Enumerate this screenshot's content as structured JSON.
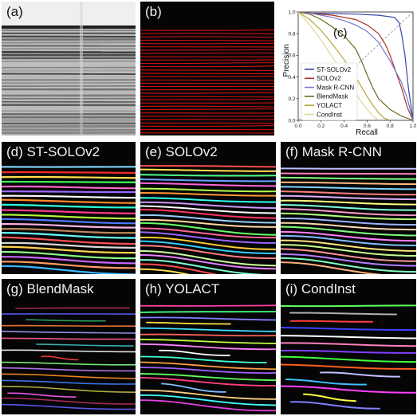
{
  "panels": [
    {
      "id": "a",
      "label": "(a)"
    },
    {
      "id": "b",
      "label": "(b)"
    },
    {
      "id": "c",
      "label": "(c)"
    },
    {
      "id": "d",
      "label": "(d) ST-SOLOv2"
    },
    {
      "id": "e",
      "label": "(e) SOLOv2"
    },
    {
      "id": "f",
      "label": "(f) Mask R-CNN"
    },
    {
      "id": "g",
      "label": "(g) BlendMask"
    },
    {
      "id": "h",
      "label": "(h) YOLACT"
    },
    {
      "id": "i",
      "label": "(i) CondInst"
    }
  ],
  "chart_data": {
    "type": "line",
    "title": "",
    "xlabel": "Recall",
    "ylabel": "Precision",
    "xlim": [
      0.0,
      1.0
    ],
    "ylim": [
      0.0,
      1.0
    ],
    "xticks": [
      "0.0",
      "0.2",
      "0.4",
      "0.6",
      "0.8",
      "1.0"
    ],
    "yticks": [
      "0.0",
      "0.2",
      "0.4",
      "0.6",
      "0.8",
      "1.0"
    ],
    "legend_position": "lower-left",
    "grid": false,
    "diagonal_reference": true,
    "series": [
      {
        "name": "ST-SOLOv2",
        "color": "#3344aa",
        "x": [
          0.0,
          0.1,
          0.3,
          0.5,
          0.7,
          0.84,
          0.88,
          0.9,
          0.93,
          0.96,
          1.0
        ],
        "y": [
          1.0,
          0.99,
          0.985,
          0.98,
          0.97,
          0.95,
          0.9,
          0.8,
          0.6,
          0.3,
          0.0
        ]
      },
      {
        "name": "SOLOv2",
        "color": "#aa3322",
        "x": [
          0.0,
          0.1,
          0.3,
          0.5,
          0.6,
          0.7,
          0.76,
          0.8,
          0.85,
          0.9,
          0.95,
          1.0
        ],
        "y": [
          1.0,
          0.99,
          0.97,
          0.93,
          0.88,
          0.8,
          0.7,
          0.6,
          0.45,
          0.3,
          0.12,
          0.0
        ]
      },
      {
        "name": "Mask R-CNN",
        "color": "#7777cc",
        "x": [
          0.0,
          0.1,
          0.2,
          0.3,
          0.4,
          0.5,
          0.6,
          0.7,
          0.8,
          0.9,
          0.95,
          1.0
        ],
        "y": [
          1.0,
          0.99,
          0.97,
          0.95,
          0.92,
          0.88,
          0.82,
          0.72,
          0.55,
          0.35,
          0.2,
          0.0
        ]
      },
      {
        "name": "BlendMask",
        "color": "#6b6a1e",
        "x": [
          0.0,
          0.1,
          0.2,
          0.3,
          0.4,
          0.5,
          0.55,
          0.6,
          0.65,
          0.7,
          0.8,
          0.9,
          1.0
        ],
        "y": [
          1.0,
          0.98,
          0.93,
          0.86,
          0.78,
          0.66,
          0.55,
          0.42,
          0.3,
          0.2,
          0.1,
          0.04,
          0.0
        ]
      },
      {
        "name": "YOLACT",
        "color": "#b5a637",
        "x": [
          0.0,
          0.1,
          0.2,
          0.3,
          0.4,
          0.5,
          0.55,
          0.6,
          0.65,
          0.7,
          0.75,
          0.8
        ],
        "y": [
          1.0,
          0.93,
          0.83,
          0.7,
          0.56,
          0.4,
          0.31,
          0.22,
          0.14,
          0.07,
          0.02,
          0.0
        ]
      },
      {
        "name": "CondInst",
        "color": "#e0d69a",
        "x": [
          0.0,
          0.1,
          0.2,
          0.3,
          0.4,
          0.5,
          0.55,
          0.6,
          0.65,
          0.7
        ],
        "y": [
          1.0,
          0.88,
          0.74,
          0.58,
          0.42,
          0.25,
          0.17,
          0.1,
          0.04,
          0.0
        ]
      }
    ]
  },
  "colors": {
    "annotation": "#d01010",
    "background_dark": "#050505",
    "lines_d": [
      "#7fd4ff",
      "#ff2b2b",
      "#ffe14d",
      "#3cff5a",
      "#ff66cc",
      "#9a6bff",
      "#ffffff",
      "#ff8a2b",
      "#2bffd9",
      "#ff3b8a",
      "#b6ff3c",
      "#4d7bff",
      "#ffb3e6",
      "#c08a5a",
      "#66ffff",
      "#ff5252",
      "#d9d9d9",
      "#ffd24d",
      "#8cff8c",
      "#cc66ff",
      "#ff9966",
      "#3cb8ff"
    ],
    "lines_e": [
      "#ff4d4d",
      "#ffe14d",
      "#4dff88",
      "#66a3ff",
      "#ff66d9",
      "#b3ff4d",
      "#ff9933",
      "#33ffee",
      "#cc99ff",
      "#ffffff",
      "#ff3366",
      "#99ccff",
      "#ffd9a0",
      "#66ff66",
      "#ff6699",
      "#9966ff",
      "#ffcc33",
      "#33ccff",
      "#ff8080",
      "#ccff99",
      "#e680ff",
      "#80ffd4"
    ],
    "lines_f": [
      "#bfbfff",
      "#ff80bf",
      "#80ff80",
      "#ffbf80",
      "#80d4ff",
      "#ff8080",
      "#d9b3ff",
      "#ffff80",
      "#80ffdf",
      "#ff99cc",
      "#b3ff80",
      "#99b3ff",
      "#ffd9b3",
      "#80ff80",
      "#ff80ff",
      "#80bfff",
      "#ffe680",
      "#c6ff8c",
      "#ff9999",
      "#b380ff",
      "#80ffbf",
      "#ffb380"
    ],
    "lines_g": [
      "#b03060",
      "#6060ff",
      "#30b060",
      "#ff8040",
      "#a0a0ff",
      "#ff60a0",
      "#40c0c0",
      "#ffffff",
      "#ff4040",
      "#80ff80",
      "#c080ff",
      "#ff9020",
      "#4080ff",
      "#c0c040",
      "#ff60ff"
    ],
    "lines_h": [
      "#ff40a0",
      "#40ff80",
      "#8080ff",
      "#ffe040",
      "#40e0ff",
      "#ff6060",
      "#c0ff40",
      "#ff80ff",
      "#ffffff",
      "#40ffd0",
      "#ffa040",
      "#a060ff",
      "#60ff60",
      "#ff4080",
      "#80c0ff",
      "#ffd080",
      "#40ffff",
      "#e040e0"
    ],
    "lines_i": [
      "#60ff60",
      "#b0b0b0",
      "#ff4040",
      "#4040ff",
      "#ffffff",
      "#ff80c0",
      "#8040ff",
      "#40ff40",
      "#ff6020",
      "#c0c0ff",
      "#40c0ff",
      "#ff40ff",
      "#ffff40",
      "#8080ff"
    ]
  }
}
